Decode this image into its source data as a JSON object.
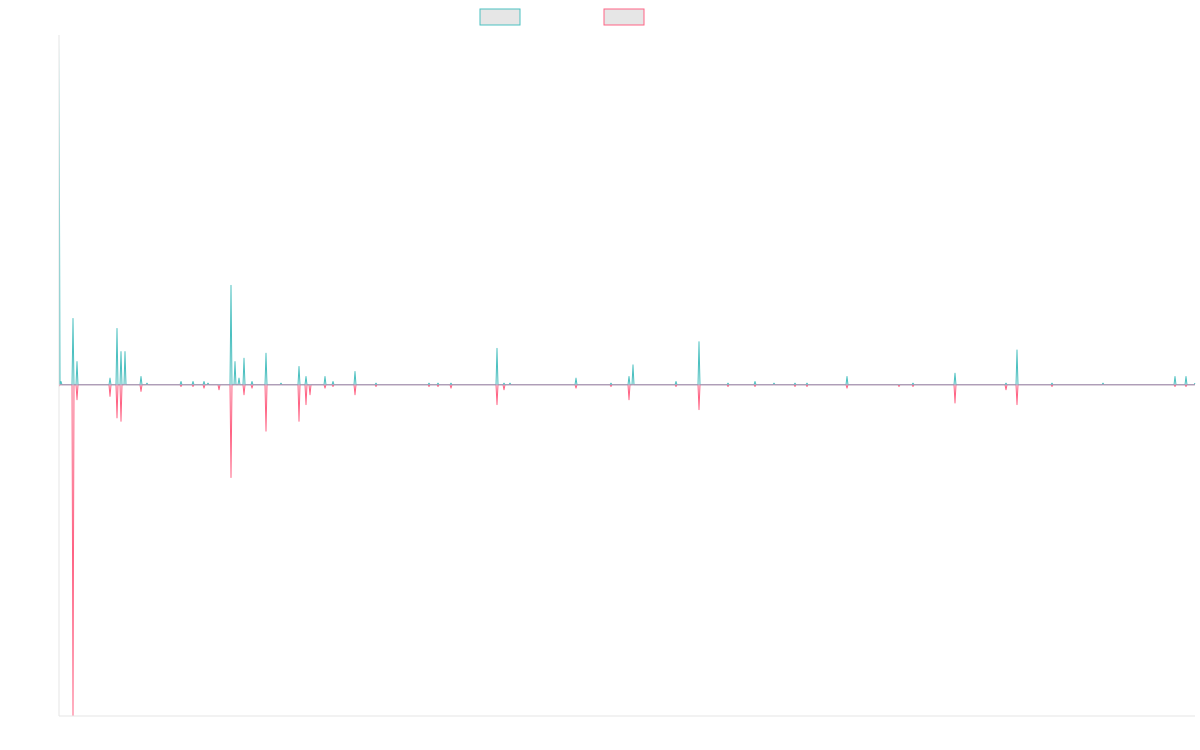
{
  "colors": {
    "background": "#ffffff",
    "axis": "#e6e6e6",
    "legend_fill": "#e6e6e6",
    "zero_line": "#8fa7c4"
  },
  "chart_data": {
    "type": "line",
    "title": "",
    "xlabel": "",
    "ylabel": "",
    "grid": false,
    "legend_position": "top-center",
    "ylim": [
      -1.0,
      1.05
    ],
    "x": [
      0,
      1,
      2,
      3,
      4,
      5,
      6,
      7,
      8,
      9,
      10,
      11,
      12,
      13,
      14,
      15,
      16,
      17,
      18,
      19,
      20,
      21,
      22,
      23,
      24,
      25,
      26,
      27,
      28,
      29,
      30,
      31,
      32,
      33,
      34,
      35,
      36,
      37,
      38,
      39,
      40,
      41,
      42,
      43,
      44,
      45,
      46,
      47,
      48,
      49,
      50,
      51,
      52,
      53,
      54,
      55,
      56,
      57,
      58,
      59,
      60,
      61,
      62,
      63,
      64,
      65,
      66,
      67,
      68,
      69,
      70,
      71,
      72,
      73,
      74,
      75,
      76,
      77,
      78,
      79,
      80,
      81,
      82,
      83,
      84,
      85,
      86,
      87,
      88,
      89,
      90,
      91,
      92,
      93,
      94,
      95,
      96,
      97,
      98,
      99,
      100,
      101,
      102,
      103,
      104,
      105,
      106,
      107,
      108,
      109,
      110,
      111,
      112,
      113,
      114,
      115,
      116,
      117,
      118,
      119,
      120,
      121,
      122,
      123,
      124,
      125,
      126,
      127,
      128,
      129,
      130,
      131,
      132,
      133,
      134,
      135,
      136,
      137,
      138,
      139,
      140,
      141,
      142,
      143,
      144,
      145,
      146,
      147,
      148,
      149,
      150,
      151,
      152,
      153,
      154,
      155,
      156,
      157,
      158,
      159,
      160,
      161,
      162,
      163,
      164,
      165,
      166,
      167,
      168,
      169,
      170,
      171,
      172,
      173,
      174,
      175,
      176,
      177,
      178,
      179,
      180,
      181,
      182,
      183,
      184,
      185,
      186,
      187,
      188,
      189,
      190,
      191,
      192,
      193,
      194,
      195,
      196,
      197,
      198,
      199,
      200,
      201,
      202,
      203,
      204,
      205,
      206,
      207,
      208,
      209,
      210,
      211,
      212,
      213,
      214,
      215,
      216,
      217,
      218,
      219,
      220,
      221,
      222,
      223,
      224,
      225,
      226,
      227,
      228,
      229,
      230,
      231,
      232,
      233,
      234,
      235,
      236,
      237,
      238,
      239,
      240,
      241,
      242,
      243,
      244,
      245,
      246,
      247,
      248,
      249,
      250,
      251,
      252,
      253,
      254,
      255,
      256,
      257,
      258,
      259,
      260,
      261,
      262,
      263,
      264,
      265,
      266,
      267,
      268,
      269,
      270,
      271,
      272,
      273,
      274,
      275,
      276,
      277,
      278,
      279,
      280,
      281,
      282,
      283,
      284,
      285,
      286,
      287,
      288,
      289,
      290,
      291,
      292,
      293,
      294,
      295,
      296,
      297,
      298,
      299,
      300,
      301,
      302,
      303,
      304,
      305,
      306,
      307,
      308,
      309,
      310,
      311,
      312,
      313,
      314,
      315,
      316,
      317,
      318,
      319,
      320,
      321,
      322,
      323,
      324,
      325,
      326,
      327,
      328,
      329,
      330,
      331,
      332,
      333,
      334,
      335,
      336,
      337,
      338,
      339,
      340,
      341,
      342,
      343,
      344,
      345,
      346,
      347,
      348,
      349,
      350,
      351,
      352,
      353,
      354,
      355,
      356,
      357,
      358,
      359,
      360,
      361,
      362,
      363,
      364,
      365,
      366,
      367,
      368,
      369,
      370,
      371,
      372,
      373,
      374,
      375,
      376,
      377,
      378,
      379,
      380,
      381,
      382,
      383,
      384,
      385,
      386,
      387,
      388,
      389,
      390,
      391,
      392,
      393,
      394,
      395,
      396,
      397,
      398,
      399,
      400,
      401,
      402,
      403,
      404,
      405,
      406,
      407,
      408,
      409,
      410,
      411,
      412,
      413,
      414,
      415,
      416,
      417,
      418,
      419,
      420,
      421,
      422,
      423,
      424,
      425,
      426,
      427,
      428,
      429,
      430,
      431,
      432,
      433,
      434,
      435,
      436,
      437,
      438,
      439,
      440,
      441,
      442,
      443,
      444,
      445,
      446,
      447,
      448,
      449,
      450,
      451,
      452,
      453,
      454,
      455,
      456,
      457,
      458,
      459,
      460,
      461,
      462,
      463,
      464,
      465,
      466,
      467,
      468,
      469,
      470,
      471,
      472,
      473,
      474,
      475,
      476,
      477,
      478,
      479,
      480,
      481,
      482,
      483,
      484,
      485,
      486,
      487,
      488,
      489,
      490,
      491,
      492,
      493,
      494,
      495,
      496,
      497,
      498,
      499,
      500,
      501,
      502,
      503,
      504,
      505,
      506,
      507,
      508,
      509,
      510,
      511,
      512,
      513,
      514,
      515,
      516,
      517,
      518,
      519,
      520,
      521,
      522,
      523,
      524,
      525,
      526,
      527,
      528,
      529,
      530,
      531,
      532,
      533,
      534,
      535,
      536,
      537,
      538,
      539,
      540,
      541,
      542,
      543,
      544,
      545,
      546,
      547,
      548,
      549,
      550,
      551,
      552,
      553,
      554,
      555,
      556,
      557,
      558,
      559,
      560,
      561,
      562,
      563,
      564,
      565,
      566,
      567,
      568,
      569,
      570,
      571,
      572,
      573,
      574,
      575,
      576,
      577,
      578,
      579,
      580,
      581,
      582,
      583,
      584,
      585,
      586,
      587,
      588,
      589,
      590,
      591,
      592,
      593,
      594,
      595,
      596,
      597,
      598,
      599,
      600,
      601,
      602,
      603,
      604,
      605,
      606,
      607,
      608,
      609,
      610,
      611,
      612,
      613,
      614,
      615,
      616,
      617,
      618,
      619,
      620,
      621,
      622,
      623,
      624,
      625,
      626,
      627,
      628,
      629,
      630,
      631,
      632,
      633,
      634,
      635,
      636,
      637,
      638,
      639,
      640,
      641,
      642,
      643,
      644,
      645,
      646,
      647,
      648,
      649,
      650,
      651,
      652,
      653,
      654,
      655,
      656,
      657,
      658,
      659,
      660,
      661,
      662,
      663,
      664,
      665,
      666,
      667,
      668,
      669,
      670,
      671,
      672,
      673,
      674,
      675,
      676,
      677,
      678,
      679,
      680,
      681,
      682,
      683,
      684,
      685,
      686,
      687,
      688,
      689,
      690,
      691,
      692,
      693,
      694,
      695,
      696,
      697,
      698,
      699,
      700,
      701,
      702,
      703,
      704,
      705,
      706,
      707,
      708,
      709,
      710,
      711,
      712,
      713,
      714,
      715,
      716,
      717,
      718,
      719,
      720,
      721,
      722,
      723,
      724,
      725,
      726,
      727,
      728,
      729,
      730,
      731,
      732,
      733,
      734,
      735,
      736,
      737,
      738,
      739,
      740,
      741,
      742,
      743,
      744,
      745,
      746,
      747,
      748,
      749,
      750,
      751,
      752,
      753,
      754,
      755,
      756,
      757,
      758,
      759,
      760,
      761,
      762,
      763,
      764,
      765,
      766,
      767,
      768,
      769,
      770,
      771,
      772,
      773,
      774,
      775,
      776,
      777,
      778,
      779,
      780,
      781,
      782,
      783,
      784,
      785,
      786,
      787,
      788,
      789,
      790,
      791,
      792,
      793,
      794,
      795,
      796,
      797,
      798,
      799,
      800,
      801,
      802,
      803,
      804,
      805,
      806,
      807,
      808,
      809,
      810,
      811,
      812,
      813,
      814,
      815,
      816,
      817,
      818,
      819,
      820,
      821,
      822,
      823,
      824,
      825,
      826,
      827,
      828,
      829,
      830,
      831,
      832,
      833,
      834,
      835,
      836,
      837,
      838,
      839,
      840,
      841,
      842,
      843,
      844,
      845,
      846,
      847,
      848,
      849,
      850,
      851,
      852,
      853,
      854,
      855,
      856,
      857,
      858,
      859,
      860,
      861,
      862,
      863,
      864,
      865,
      866,
      867,
      868,
      869,
      870,
      871,
      872,
      873,
      874,
      875,
      876,
      877,
      878,
      879,
      880,
      881,
      882,
      883,
      884,
      885,
      886,
      887,
      888,
      889,
      890,
      891,
      892,
      893,
      894,
      895,
      896,
      897,
      898,
      899,
      900,
      901,
      902,
      903,
      904,
      905,
      906,
      907,
      908,
      909,
      910,
      911,
      912,
      913,
      914,
      915,
      916,
      917,
      918,
      919,
      920,
      921,
      922,
      923,
      924,
      925,
      926,
      927,
      928,
      929,
      930,
      931,
      932,
      933,
      934,
      935,
      936,
      937,
      938,
      939,
      940,
      941,
      942,
      943,
      944,
      945,
      946,
      947,
      948,
      949,
      950,
      951,
      952,
      953,
      954,
      955,
      956,
      957,
      958,
      959,
      960,
      961,
      962,
      963,
      964,
      965,
      966,
      967,
      968,
      969,
      970,
      971,
      972,
      973,
      974,
      975,
      976,
      977,
      978,
      979,
      980,
      981,
      982,
      983,
      984,
      985,
      986,
      987,
      988,
      989,
      990,
      991,
      992,
      993,
      994,
      995,
      996,
      997,
      998,
      999,
      1000,
      1001,
      1002,
      1003,
      1004,
      1005,
      1006,
      1007,
      1008,
      1009,
      1010,
      1011,
      1012,
      1013,
      1014,
      1015,
      1016,
      1017,
      1018,
      1019,
      1020,
      1021,
      1022,
      1023,
      1024,
      1025,
      1026,
      1027,
      1028,
      1029,
      1030,
      1031,
      1032,
      1033,
      1034,
      1035,
      1036,
      1037,
      1038,
      1039,
      1040,
      1041,
      1042,
      1043,
      1044,
      1045,
      1046,
      1047,
      1048,
      1049,
      1050,
      1051,
      1052,
      1053,
      1054,
      1055,
      1056,
      1057,
      1058,
      1059,
      1060,
      1061,
      1062,
      1063,
      1064,
      1065,
      1066,
      1067,
      1068,
      1069,
      1070,
      1071,
      1072,
      1073,
      1074,
      1075,
      1076,
      1077,
      1078,
      1079,
      1080,
      1081,
      1082,
      1083,
      1084,
      1085,
      1086,
      1087,
      1088,
      1089,
      1090,
      1091,
      1092,
      1093,
      1094,
      1095,
      1096,
      1097,
      1098,
      1099,
      1100,
      1101,
      1102,
      1103,
      1104,
      1105,
      1106,
      1107,
      1108,
      1109,
      1110,
      1111,
      1112,
      1113,
      1114,
      1115,
      1116,
      1117,
      1118,
      1119,
      1120,
      1121,
      1122,
      1123,
      1124,
      1125,
      1126,
      1127,
      1128,
      1129,
      1130,
      1131,
      1132,
      1133,
      1134,
      1135,
      1136
    ],
    "series": [
      {
        "color": "#4bc0c0",
        "fill": "#e6e6e6",
        "peaks": [
          [
            0,
            1.05
          ],
          [
            2,
            0.01
          ],
          [
            14,
            0.2
          ],
          [
            18,
            0.07
          ],
          [
            51,
            0.02
          ],
          [
            58,
            0.17
          ],
          [
            62,
            0.1
          ],
          [
            66,
            0.1
          ],
          [
            82,
            0.025
          ],
          [
            88,
            0.005
          ],
          [
            122,
            0.01
          ],
          [
            134,
            0.01
          ],
          [
            145,
            0.01
          ],
          [
            149,
            0.005
          ],
          [
            172,
            0.3
          ],
          [
            176,
            0.07
          ],
          [
            180,
            0.02
          ],
          [
            185,
            0.08
          ],
          [
            193,
            0.01
          ],
          [
            207,
            0.095
          ],
          [
            222,
            0.005
          ],
          [
            240,
            0.055
          ],
          [
            247,
            0.025
          ],
          [
            266,
            0.025
          ],
          [
            274,
            0.01
          ],
          [
            296,
            0.04
          ],
          [
            317,
            0.005
          ],
          [
            370,
            0.005
          ],
          [
            379,
            0.005
          ],
          [
            392,
            0.005
          ],
          [
            438,
            0.11
          ],
          [
            445,
            0.005
          ],
          [
            451,
            0.005
          ],
          [
            517,
            0.02
          ],
          [
            552,
            0.005
          ],
          [
            570,
            0.025
          ],
          [
            574,
            0.06
          ],
          [
            617,
            0.01
          ],
          [
            640,
            0.13
          ],
          [
            669,
            0.005
          ],
          [
            696,
            0.01
          ],
          [
            715,
            0.005
          ],
          [
            736,
            0.005
          ],
          [
            748,
            0.005
          ],
          [
            788,
            0.025
          ],
          [
            854,
            0.005
          ],
          [
            896,
            0.035
          ],
          [
            947,
            0.005
          ],
          [
            958,
            0.105
          ],
          [
            993,
            0.005
          ],
          [
            1044,
            0.005
          ],
          [
            1116,
            0.025
          ],
          [
            1127,
            0.025
          ],
          [
            1136,
            0.005
          ]
        ]
      },
      {
        "color": "#ff6384",
        "fill": "#e6e6e6",
        "peaks": [
          [
            0,
            -0.005
          ],
          [
            14,
            -1.0
          ],
          [
            18,
            -0.045
          ],
          [
            51,
            -0.035
          ],
          [
            58,
            -0.1
          ],
          [
            62,
            -0.11
          ],
          [
            82,
            -0.02
          ],
          [
            122,
            -0.005
          ],
          [
            134,
            -0.005
          ],
          [
            145,
            -0.01
          ],
          [
            160,
            -0.015
          ],
          [
            172,
            -0.28
          ],
          [
            185,
            -0.03
          ],
          [
            193,
            -0.01
          ],
          [
            207,
            -0.14
          ],
          [
            240,
            -0.11
          ],
          [
            247,
            -0.06
          ],
          [
            251,
            -0.03
          ],
          [
            266,
            -0.01
          ],
          [
            274,
            -0.005
          ],
          [
            296,
            -0.03
          ],
          [
            317,
            -0.005
          ],
          [
            370,
            -0.005
          ],
          [
            379,
            -0.005
          ],
          [
            392,
            -0.01
          ],
          [
            438,
            -0.06
          ],
          [
            445,
            -0.015
          ],
          [
            517,
            -0.01
          ],
          [
            552,
            -0.005
          ],
          [
            570,
            -0.045
          ],
          [
            617,
            -0.005
          ],
          [
            640,
            -0.075
          ],
          [
            669,
            -0.005
          ],
          [
            696,
            -0.005
          ],
          [
            736,
            -0.005
          ],
          [
            748,
            -0.005
          ],
          [
            788,
            -0.01
          ],
          [
            840,
            -0.005
          ],
          [
            854,
            -0.005
          ],
          [
            896,
            -0.055
          ],
          [
            947,
            -0.015
          ],
          [
            958,
            -0.06
          ],
          [
            993,
            -0.005
          ],
          [
            1116,
            -0.005
          ],
          [
            1127,
            -0.005
          ]
        ]
      }
    ]
  }
}
